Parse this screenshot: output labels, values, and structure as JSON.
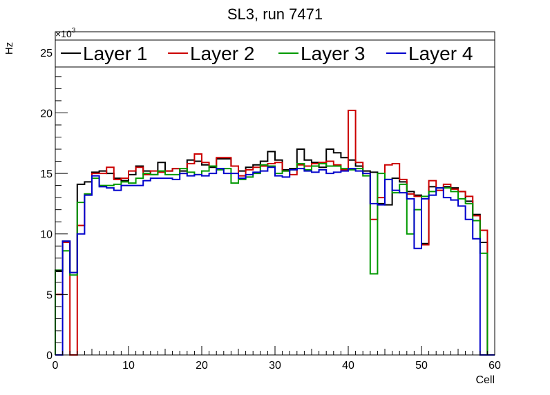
{
  "chart_data": {
    "type": "line",
    "title": "SL3, run 7471",
    "xlabel": "Cell",
    "ylabel": "Hz",
    "y_multiplier": "×10",
    "y_multiplier_exp": "3",
    "xlim": [
      0,
      60
    ],
    "ylim": [
      0,
      26.7
    ],
    "x_ticks": [
      0,
      10,
      20,
      30,
      40,
      50,
      60
    ],
    "y_ticks": [
      0,
      5,
      10,
      15,
      20,
      25
    ],
    "grid": false,
    "legend_position": "top",
    "bin_edges_start": 0,
    "bin_width": 1,
    "series": [
      {
        "name": "Layer 1",
        "color": "#000000",
        "values": [
          6.9,
          9.4,
          6.8,
          14.1,
          14.3,
          15.1,
          15.2,
          15.0,
          14.6,
          14.4,
          14.9,
          15.6,
          15.2,
          14.9,
          15.9,
          15.2,
          15.4,
          15.2,
          16.1,
          16.0,
          15.7,
          15.5,
          16.2,
          16.2,
          15.6,
          15.2,
          15.5,
          15.7,
          16.0,
          16.8,
          16.1,
          15.3,
          15.4,
          17.0,
          16.1,
          15.9,
          15.5,
          17.0,
          16.7,
          16.3,
          16.1,
          15.6,
          15.2,
          15.1,
          12.5,
          12.4,
          14.6,
          14.3,
          13.5,
          13.2,
          9.2,
          13.9,
          13.8,
          13.9,
          13.8,
          13.5,
          12.7,
          11.6,
          9.3,
          0
        ]
      },
      {
        "name": "Layer 2",
        "color": "#cc0000",
        "values": [
          5.0,
          9.3,
          0,
          10.7,
          13.3,
          15.0,
          15.0,
          15.5,
          14.5,
          14.6,
          15.2,
          15.5,
          14.9,
          15.2,
          15.1,
          15.2,
          15.4,
          15.0,
          15.8,
          16.6,
          15.9,
          15.6,
          16.3,
          16.3,
          15.6,
          14.8,
          15.3,
          15.5,
          15.6,
          15.8,
          15.9,
          15.2,
          14.9,
          15.7,
          15.6,
          15.8,
          15.9,
          16.0,
          15.7,
          15.3,
          20.2,
          15.9,
          15.0,
          11.2,
          13.0,
          15.7,
          15.8,
          14.5,
          13.3,
          13.1,
          9.1,
          14.4,
          13.6,
          14.1,
          13.7,
          13.5,
          13.1,
          11.5,
          10.3,
          0
        ]
      },
      {
        "name": "Layer 3",
        "color": "#009900",
        "values": [
          7.0,
          8.6,
          6.6,
          12.6,
          13.3,
          14.6,
          14.0,
          14.0,
          14.1,
          14.3,
          14.2,
          14.6,
          15.0,
          14.9,
          15.2,
          14.9,
          14.9,
          15.4,
          15.1,
          14.9,
          15.2,
          15.6,
          15.3,
          15.4,
          14.2,
          14.5,
          14.7,
          15.0,
          15.7,
          15.6,
          15.0,
          15.2,
          15.3,
          15.8,
          15.3,
          15.6,
          15.8,
          15.6,
          15.6,
          15.4,
          15.3,
          15.4,
          14.8,
          6.7,
          15.0,
          14.5,
          13.4,
          14.1,
          10.0,
          12.0,
          13.1,
          13.5,
          13.8,
          13.8,
          13.5,
          12.9,
          12.5,
          11.1,
          8.4,
          0
        ]
      },
      {
        "name": "Layer 4",
        "color": "#0000cc",
        "values": [
          0,
          9.4,
          6.8,
          10.0,
          13.2,
          14.8,
          13.9,
          13.8,
          13.6,
          14.0,
          14.0,
          14.0,
          14.4,
          14.6,
          14.6,
          14.6,
          14.5,
          15.0,
          14.8,
          14.9,
          14.8,
          15.0,
          15.4,
          15.0,
          15.0,
          14.6,
          14.9,
          15.1,
          15.2,
          15.5,
          14.8,
          14.7,
          15.3,
          15.4,
          15.2,
          15.1,
          15.3,
          15.0,
          15.1,
          15.2,
          15.4,
          15.2,
          15.0,
          12.5,
          12.4,
          14.5,
          13.6,
          13.4,
          12.9,
          8.8,
          12.9,
          13.2,
          13.8,
          13.0,
          12.8,
          12.3,
          11.2,
          9.6,
          0,
          0
        ]
      }
    ]
  }
}
